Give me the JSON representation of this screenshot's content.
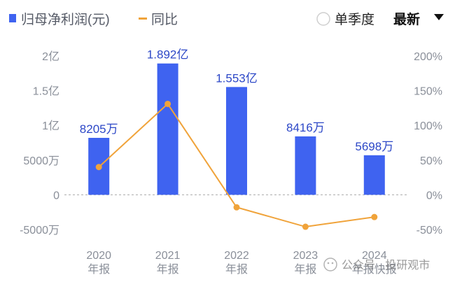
{
  "legend": {
    "bar_series": "归母净利润(元)",
    "line_series": "同比"
  },
  "controls": {
    "single_quarter": "单季度",
    "latest": "最新"
  },
  "watermark": "公众号 · 投研观市",
  "colors": {
    "bar": "#3f63f0",
    "line": "#f0a33a",
    "baseline": "#aaaaaa",
    "label": "#2d48c7",
    "axis_text": "#8a8f99"
  },
  "chart_data": {
    "type": "bar",
    "categories": [
      "2020\n年报",
      "2021\n年报",
      "2022\n年报",
      "2023\n年报",
      "2024\n年报快报"
    ],
    "category_lines": [
      [
        "2020",
        "年报"
      ],
      [
        "2021",
        "年报"
      ],
      [
        "2022",
        "年报"
      ],
      [
        "2023",
        "年报"
      ],
      [
        "2024",
        "年报快报"
      ]
    ],
    "series": [
      {
        "name": "归母净利润(元)",
        "type": "bar",
        "axis": "left",
        "values": [
          82050000,
          189200000,
          155300000,
          84160000,
          56980000
        ],
        "labels": [
          "8205万",
          "1.892亿",
          "1.553亿",
          "8416万",
          "5698万"
        ]
      },
      {
        "name": "同比",
        "type": "line",
        "axis": "right",
        "values": [
          40,
          131,
          -18,
          -46,
          -32
        ]
      }
    ],
    "y_left": {
      "range": [
        -50000000,
        200000000
      ],
      "ticks": [
        200000000,
        150000000,
        100000000,
        50000000,
        0,
        -50000000
      ],
      "tick_labels": [
        "2亿",
        "1.5亿",
        "1亿",
        "5000万",
        "0",
        "-5000万"
      ]
    },
    "y_right": {
      "range": [
        -50,
        200
      ],
      "ticks": [
        200,
        150,
        100,
        50,
        0,
        -50
      ],
      "tick_labels": [
        "200%",
        "150%",
        "100%",
        "50%",
        "0%",
        "-50%"
      ]
    },
    "zero_line": "dashed",
    "grid": false,
    "legend_position": "top-left"
  }
}
